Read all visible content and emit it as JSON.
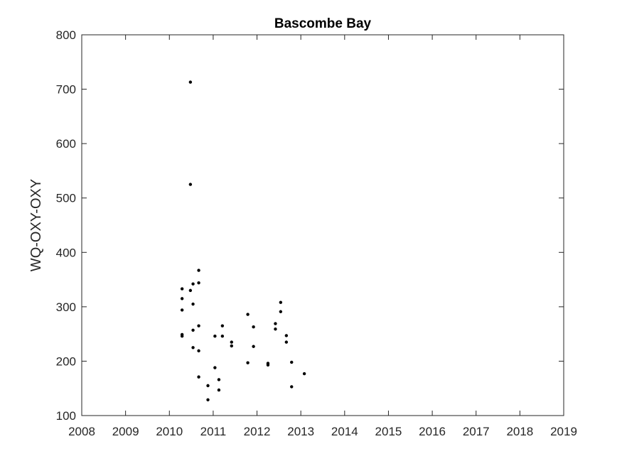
{
  "chart_data": {
    "type": "scatter",
    "title": "Bascombe Bay",
    "xlabel": "",
    "ylabel": "WQ-OXY-OXY",
    "xlim": [
      2008,
      2019
    ],
    "ylim": [
      100,
      800
    ],
    "xticks": [
      2008,
      2009,
      2010,
      2011,
      2012,
      2013,
      2014,
      2015,
      2016,
      2017,
      2018,
      2019
    ],
    "xtick_labels": [
      "2008",
      "2009",
      "2010",
      "2011",
      "2012",
      "2013",
      "2014",
      "2015",
      "2016",
      "2017",
      "2018",
      "2019"
    ],
    "yticks": [
      100,
      200,
      300,
      400,
      500,
      600,
      700,
      800
    ],
    "ytick_labels": [
      "100",
      "200",
      "300",
      "400",
      "500",
      "600",
      "700",
      "800"
    ],
    "grid": false,
    "marker_color": "#000000",
    "series": [
      {
        "points": [
          {
            "x": 2010.29,
            "y": 333
          },
          {
            "x": 2010.29,
            "y": 315
          },
          {
            "x": 2010.29,
            "y": 294
          },
          {
            "x": 2010.29,
            "y": 249
          },
          {
            "x": 2010.29,
            "y": 246
          },
          {
            "x": 2010.48,
            "y": 713
          },
          {
            "x": 2010.48,
            "y": 525
          },
          {
            "x": 2010.48,
            "y": 330
          },
          {
            "x": 2010.54,
            "y": 342
          },
          {
            "x": 2010.54,
            "y": 305
          },
          {
            "x": 2010.54,
            "y": 257
          },
          {
            "x": 2010.54,
            "y": 225
          },
          {
            "x": 2010.67,
            "y": 367
          },
          {
            "x": 2010.67,
            "y": 344
          },
          {
            "x": 2010.67,
            "y": 265
          },
          {
            "x": 2010.67,
            "y": 219
          },
          {
            "x": 2010.67,
            "y": 171
          },
          {
            "x": 2010.88,
            "y": 155
          },
          {
            "x": 2010.88,
            "y": 129
          },
          {
            "x": 2011.04,
            "y": 246
          },
          {
            "x": 2011.04,
            "y": 188
          },
          {
            "x": 2011.13,
            "y": 166
          },
          {
            "x": 2011.13,
            "y": 147
          },
          {
            "x": 2011.21,
            "y": 265
          },
          {
            "x": 2011.21,
            "y": 246
          },
          {
            "x": 2011.42,
            "y": 235
          },
          {
            "x": 2011.42,
            "y": 228
          },
          {
            "x": 2011.79,
            "y": 286
          },
          {
            "x": 2011.79,
            "y": 197
          },
          {
            "x": 2011.92,
            "y": 263
          },
          {
            "x": 2011.92,
            "y": 227
          },
          {
            "x": 2012.25,
            "y": 196
          },
          {
            "x": 2012.25,
            "y": 193
          },
          {
            "x": 2012.42,
            "y": 269
          },
          {
            "x": 2012.42,
            "y": 259
          },
          {
            "x": 2012.54,
            "y": 308
          },
          {
            "x": 2012.54,
            "y": 291
          },
          {
            "x": 2012.67,
            "y": 247
          },
          {
            "x": 2012.67,
            "y": 235
          },
          {
            "x": 2012.79,
            "y": 198
          },
          {
            "x": 2012.79,
            "y": 153
          },
          {
            "x": 2013.08,
            "y": 177
          }
        ]
      }
    ]
  }
}
